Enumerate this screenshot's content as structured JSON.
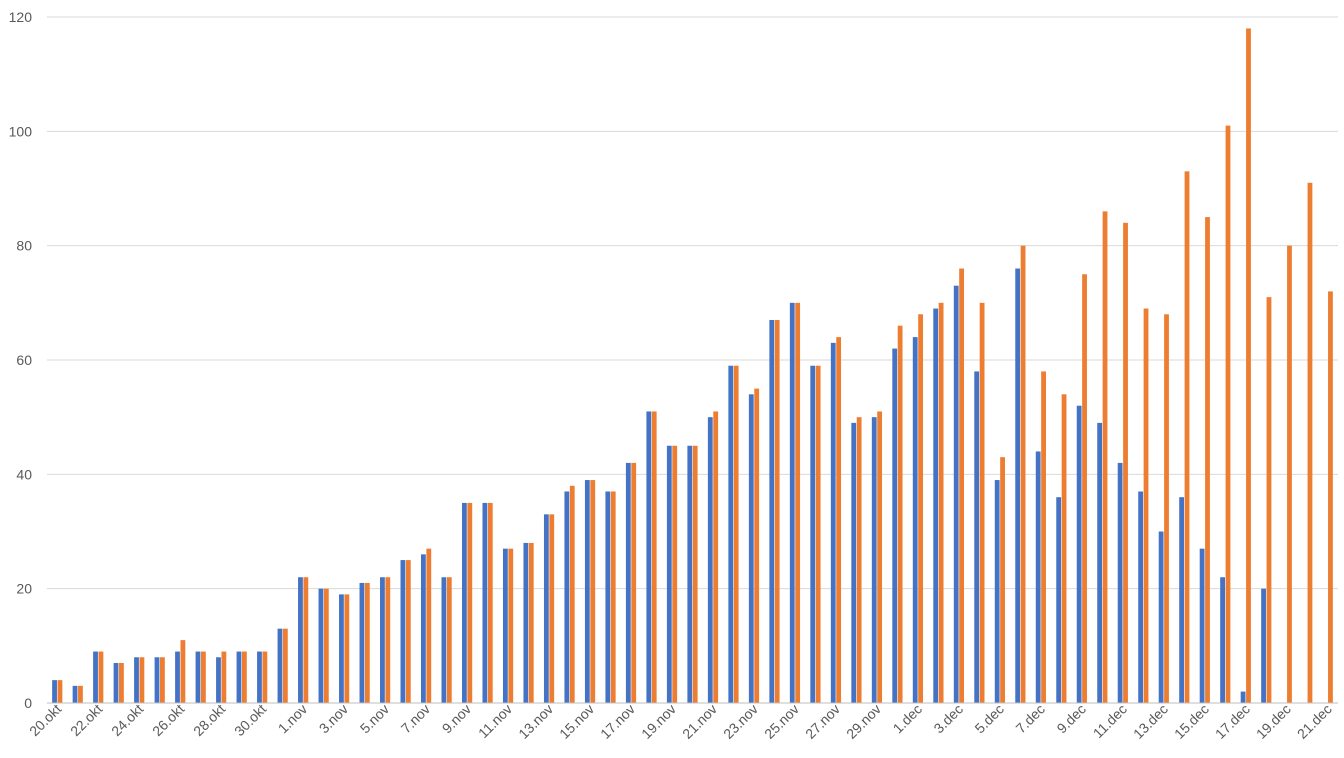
{
  "chart_data": {
    "type": "bar",
    "title": "",
    "xlabel": "",
    "ylabel": "",
    "ylim": [
      0,
      120
    ],
    "yticks": [
      0,
      20,
      40,
      60,
      80,
      100,
      120
    ],
    "grid": true,
    "legend": "none",
    "categories": [
      "20.okt",
      "21.okt",
      "22.okt",
      "23.okt",
      "24.okt",
      "25.okt",
      "26.okt",
      "27.okt",
      "28.okt",
      "29.okt",
      "30.okt",
      "31.okt",
      "1.nov",
      "2.nov",
      "3.nov",
      "4.nov",
      "5.nov",
      "6.nov",
      "7.nov",
      "8.nov",
      "9.nov",
      "10.nov",
      "11.nov",
      "12.nov",
      "13.nov",
      "14.nov",
      "15.nov",
      "16.nov",
      "17.nov",
      "18.nov",
      "19.nov",
      "20.nov",
      "21.nov",
      "22.nov",
      "23.nov",
      "24.nov",
      "25.nov",
      "26.nov",
      "27.nov",
      "28.nov",
      "29.nov",
      "30.nov",
      "1.dec",
      "2.dec",
      "3.dec",
      "4.dec",
      "5.dec",
      "6.dec",
      "7.dec",
      "8.dec",
      "9.dec",
      "10.dec",
      "11.dec",
      "12.dec",
      "13.dec",
      "14.dec",
      "15.dec",
      "16.dec",
      "17.dec",
      "18.dec",
      "19.dec",
      "20.dec",
      "21.dec"
    ],
    "series": [
      {
        "color": "#4472c4",
        "values": [
          4,
          3,
          9,
          7,
          8,
          8,
          9,
          9,
          8,
          9,
          9,
          13,
          22,
          20,
          19,
          21,
          22,
          25,
          26,
          22,
          35,
          35,
          27,
          28,
          33,
          37,
          39,
          37,
          42,
          51,
          45,
          45,
          50,
          59,
          54,
          67,
          70,
          59,
          63,
          49,
          50,
          62,
          64,
          69,
          73,
          58,
          39,
          76,
          44,
          36,
          52,
          49,
          42,
          37,
          30,
          36,
          27,
          22,
          2,
          20,
          0,
          0,
          0
        ]
      },
      {
        "color": "#ed7d31",
        "values": [
          4,
          3,
          9,
          7,
          8,
          8,
          11,
          9,
          9,
          9,
          9,
          13,
          22,
          20,
          19,
          21,
          22,
          25,
          27,
          22,
          35,
          35,
          27,
          28,
          33,
          38,
          39,
          37,
          42,
          51,
          45,
          45,
          51,
          59,
          55,
          67,
          70,
          59,
          64,
          50,
          51,
          66,
          68,
          70,
          76,
          70,
          43,
          80,
          58,
          54,
          75,
          86,
          84,
          69,
          68,
          93,
          85,
          101,
          118,
          71,
          80,
          91,
          72
        ]
      }
    ]
  }
}
